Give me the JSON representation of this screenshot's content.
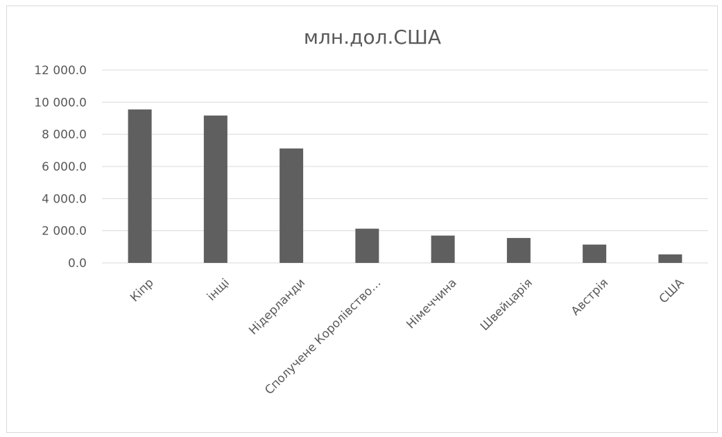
{
  "chart_data": {
    "type": "bar",
    "title": "млн.дол.США",
    "xlabel": "",
    "ylabel": "",
    "categories": [
      "Кіпр",
      "інщі",
      "Нідерланди",
      "Сполучене Королівство…",
      "Німеччина",
      "Швейцарія",
      "Австрія",
      "США"
    ],
    "values": [
      9550,
      9170,
      7120,
      2130,
      1700,
      1550,
      1140,
      530
    ],
    "ylim": [
      0,
      12000
    ],
    "yticks": [
      0,
      2000,
      4000,
      6000,
      8000,
      10000,
      12000
    ],
    "ytick_labels": [
      "0.0",
      "2 000.0",
      "4 000.0",
      "6 000.0",
      "8 000.0",
      "10 000.0",
      "12 000.0"
    ],
    "grid": true,
    "legend": "none",
    "bar_color": "#5f5f5f",
    "grid_color": "#d9d9d9",
    "text_color": "#595959"
  }
}
